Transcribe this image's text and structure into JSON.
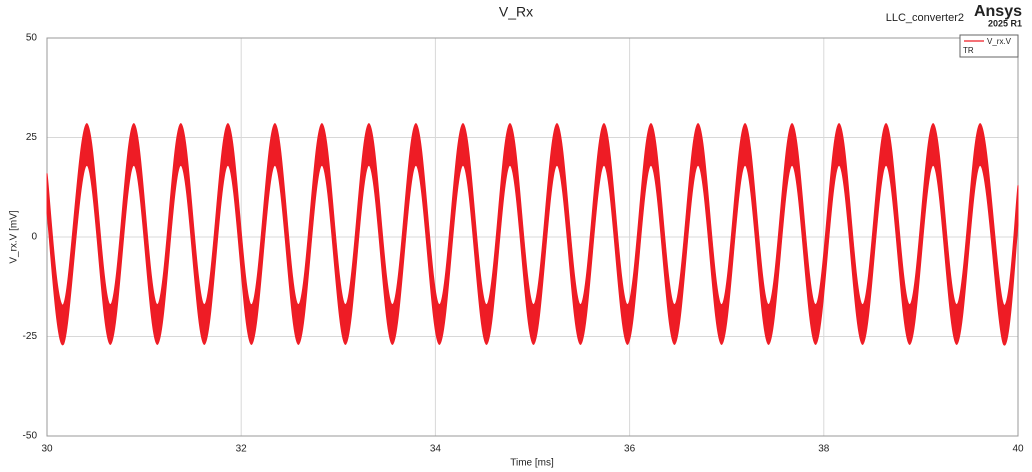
{
  "chart_data": {
    "type": "band",
    "title": "V_Rx",
    "project": "LLC_converter2",
    "brand": "Ansys",
    "version": "2025 R1",
    "x_label": "Time [ms]",
    "y_label": "V_rx.V [mV]",
    "xlim": [
      30,
      40
    ],
    "xticks": [
      30,
      32,
      34,
      36,
      38,
      40
    ],
    "ylim": [
      -50,
      50
    ],
    "yticks": [
      50,
      25,
      0,
      -25,
      -50
    ],
    "grid": true,
    "legend": "top-right",
    "legend_note": "TR",
    "series": [
      {
        "name": "V_rx.V",
        "color": "#ee1c25",
        "x": [
          30,
          30.168,
          30.41,
          30.652,
          30.894,
          31.136,
          31.378,
          31.62,
          31.863,
          32.105,
          32.347,
          32.589,
          32.831,
          33.073,
          33.315,
          33.557,
          33.799,
          34.041,
          34.284,
          34.526,
          34.768,
          35.01,
          35.252,
          35.494,
          35.736,
          35.978,
          36.22,
          36.462,
          36.705,
          36.947,
          37.189,
          37.431,
          37.673,
          37.915,
          38.157,
          38.399,
          38.641,
          38.884,
          39.126,
          39.368,
          39.61,
          39.852,
          40
        ],
        "upper": [
          16,
          -17,
          28.5,
          -17,
          28.5,
          -17,
          28.5,
          -17,
          28.5,
          -17,
          28.5,
          -17,
          28.5,
          -17,
          28.5,
          -17,
          28.5,
          -17,
          28.5,
          -17,
          28.5,
          -17,
          28.5,
          -17,
          28.5,
          -17,
          28.5,
          -17,
          28.5,
          -17,
          28.5,
          -17,
          28.5,
          -17,
          28.5,
          -17,
          28.5,
          -17,
          28.5,
          -17,
          28.5,
          -17,
          13
        ],
        "lower": [
          6,
          -27,
          18,
          -27,
          18,
          -27,
          18,
          -27,
          18,
          -27,
          18,
          -27,
          18,
          -27,
          18,
          -27,
          18,
          -27,
          18,
          -27,
          18,
          -27,
          18,
          -27,
          18,
          -27,
          18,
          -27,
          18,
          -27,
          18,
          -27,
          18,
          -27,
          18,
          -27,
          18,
          -27,
          18,
          -27,
          18,
          -27,
          3
        ]
      }
    ]
  }
}
